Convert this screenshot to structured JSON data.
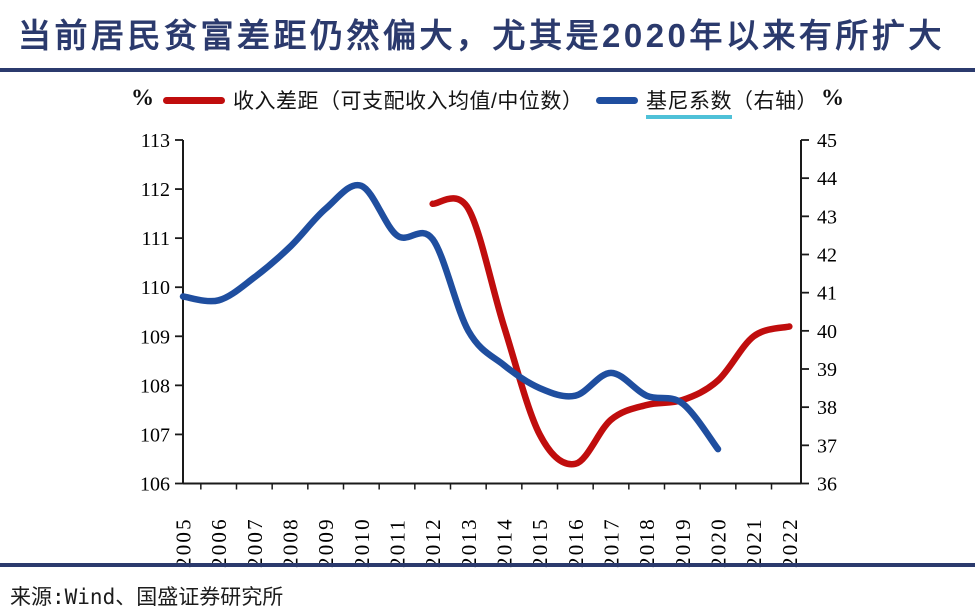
{
  "header": {
    "title": "当前居民贫富差距仍然偏大，尤其是2020年以来有所扩大"
  },
  "legend": {
    "income_gap_label": "收入差距（可支配收入均值/中位数）",
    "gini_label_main": "基尼系数",
    "gini_label_suffix": "（右轴）"
  },
  "source": "来源:Wind、国盛证券研究所",
  "colors": {
    "title_navy": "#2B3A6D",
    "income_gap_red": "#C00D0D",
    "gini_blue": "#1F4E9F",
    "gini_underline_cyan": "#4FC1D8",
    "axis_black": "#1A1A1A"
  },
  "chart_data": {
    "type": "line",
    "title": "当前居民贫富差距仍然偏大，尤其是2020年以来有所扩大",
    "x": [
      "2005",
      "2006",
      "2007",
      "2008",
      "2009",
      "2010",
      "2011",
      "2012",
      "2013",
      "2014",
      "2015",
      "2016",
      "2017",
      "2018",
      "2019",
      "2020",
      "2021",
      "2022"
    ],
    "left_axis": {
      "unit": "%",
      "min": 106,
      "max": 113,
      "step": 1
    },
    "right_axis": {
      "unit": "%",
      "min": 36,
      "max": 45,
      "step": 1
    },
    "grid": false,
    "legend_position": "top",
    "series": [
      {
        "id": "income_gap",
        "name": "收入差距（可支配收入均值/中位数）",
        "axis": "left",
        "color": "#C00D0D",
        "start_year": 2012,
        "values": [
          111.7,
          111.6,
          109.2,
          107.0,
          106.4,
          107.3,
          107.6,
          107.7,
          108.1,
          109.0,
          109.2
        ]
      },
      {
        "id": "gini",
        "name": "基尼系数（右轴）",
        "axis": "right",
        "color": "#1F4E9F",
        "start_year": 2005,
        "values": [
          40.9,
          40.8,
          41.4,
          42.2,
          43.2,
          43.8,
          42.5,
          42.4,
          40.0,
          39.1,
          38.5,
          38.3,
          38.9,
          38.3,
          38.1,
          36.9
        ]
      }
    ]
  }
}
